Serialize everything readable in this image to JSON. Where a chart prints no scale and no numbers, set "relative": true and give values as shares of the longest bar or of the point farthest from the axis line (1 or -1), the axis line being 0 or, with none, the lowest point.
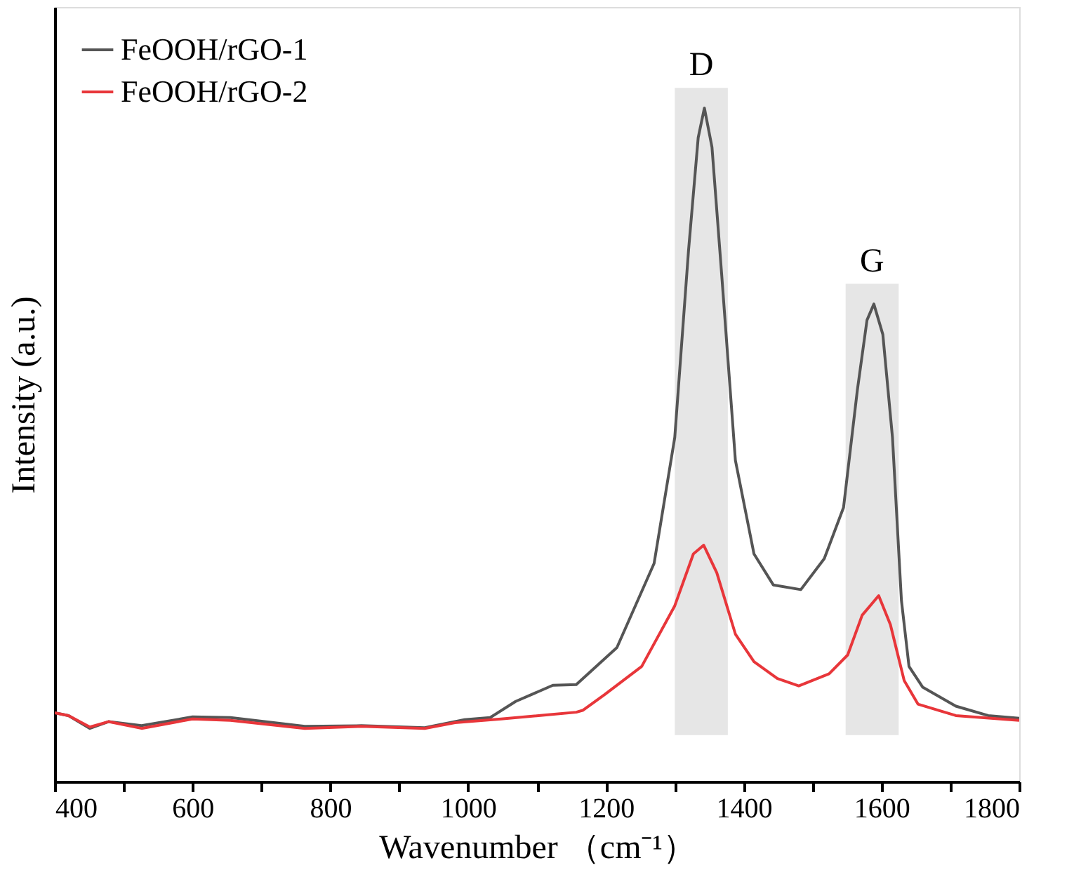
{
  "chart_data": {
    "type": "line",
    "relative": true,
    "xlabel": "Wavenumber （cm⁻¹）",
    "ylabel": "Intensity (a.u.)",
    "xlim": [
      400,
      1800
    ],
    "xticks": [
      400,
      {
        "value": 500,
        "label": null
      },
      600,
      {
        "value": 700,
        "label": null
      },
      800,
      {
        "value": 900,
        "label": null
      },
      1000,
      {
        "value": 1100,
        "label": null
      },
      1200,
      {
        "value": 1300,
        "label": null
      },
      1400,
      {
        "value": 1500,
        "label": null
      },
      1600,
      {
        "value": 1700,
        "label": null
      },
      1800
    ],
    "tick_labels": "x",
    "legend": "top left",
    "grid": false,
    "series": [
      {
        "name": "FeOOH/rGO-1",
        "color": "#555555",
        "x": [
          400,
          420,
          451,
          478,
          526,
          600,
          655,
          763,
          845,
          937,
          995,
          1032,
          1069,
          1123,
          1157,
          1216,
          1270,
          1300,
          1320,
          1334,
          1343,
          1354,
          1368,
          1388,
          1415,
          1443,
          1483,
          1517,
          1545,
          1565,
          1579,
          1589,
          1602,
          1616,
          1629,
          1640,
          1660,
          1708,
          1755,
          1800
        ],
        "values": [
          0.102,
          0.098,
          0.079,
          0.089,
          0.083,
          0.096,
          0.095,
          0.082,
          0.083,
          0.08,
          0.092,
          0.095,
          0.119,
          0.143,
          0.144,
          0.199,
          0.324,
          0.511,
          0.789,
          0.956,
          1.0,
          0.942,
          0.754,
          0.477,
          0.338,
          0.292,
          0.285,
          0.331,
          0.407,
          0.581,
          0.685,
          0.709,
          0.664,
          0.511,
          0.269,
          0.171,
          0.14,
          0.112,
          0.098,
          0.094
        ]
      },
      {
        "name": "FeOOH/rGO-2",
        "color": "#e8363a",
        "x": [
          400,
          420,
          451,
          478,
          526,
          600,
          655,
          763,
          845,
          937,
          981,
          1048,
          1157,
          1167,
          1198,
          1252,
          1300,
          1327,
          1342,
          1361,
          1388,
          1415,
          1449,
          1480,
          1524,
          1551,
          1572,
          1596,
          1613,
          1633,
          1653,
          1708,
          1800
        ],
        "values": [
          0.102,
          0.098,
          0.081,
          0.089,
          0.079,
          0.093,
          0.091,
          0.079,
          0.082,
          0.079,
          0.0875,
          0.093,
          0.103,
          0.106,
          0.129,
          0.171,
          0.261,
          0.338,
          0.351,
          0.31,
          0.219,
          0.178,
          0.153,
          0.142,
          0.16,
          0.188,
          0.247,
          0.276,
          0.233,
          0.15,
          0.115,
          0.098,
          0.091
        ]
      }
    ],
    "bands": [
      {
        "axis": "x",
        "from": 1300,
        "to": 1377,
        "label": "D",
        "color": "#e6e6e6"
      },
      {
        "axis": "x",
        "from": 1548,
        "to": 1625,
        "label": "G",
        "color": "#e6e6e6"
      }
    ]
  }
}
